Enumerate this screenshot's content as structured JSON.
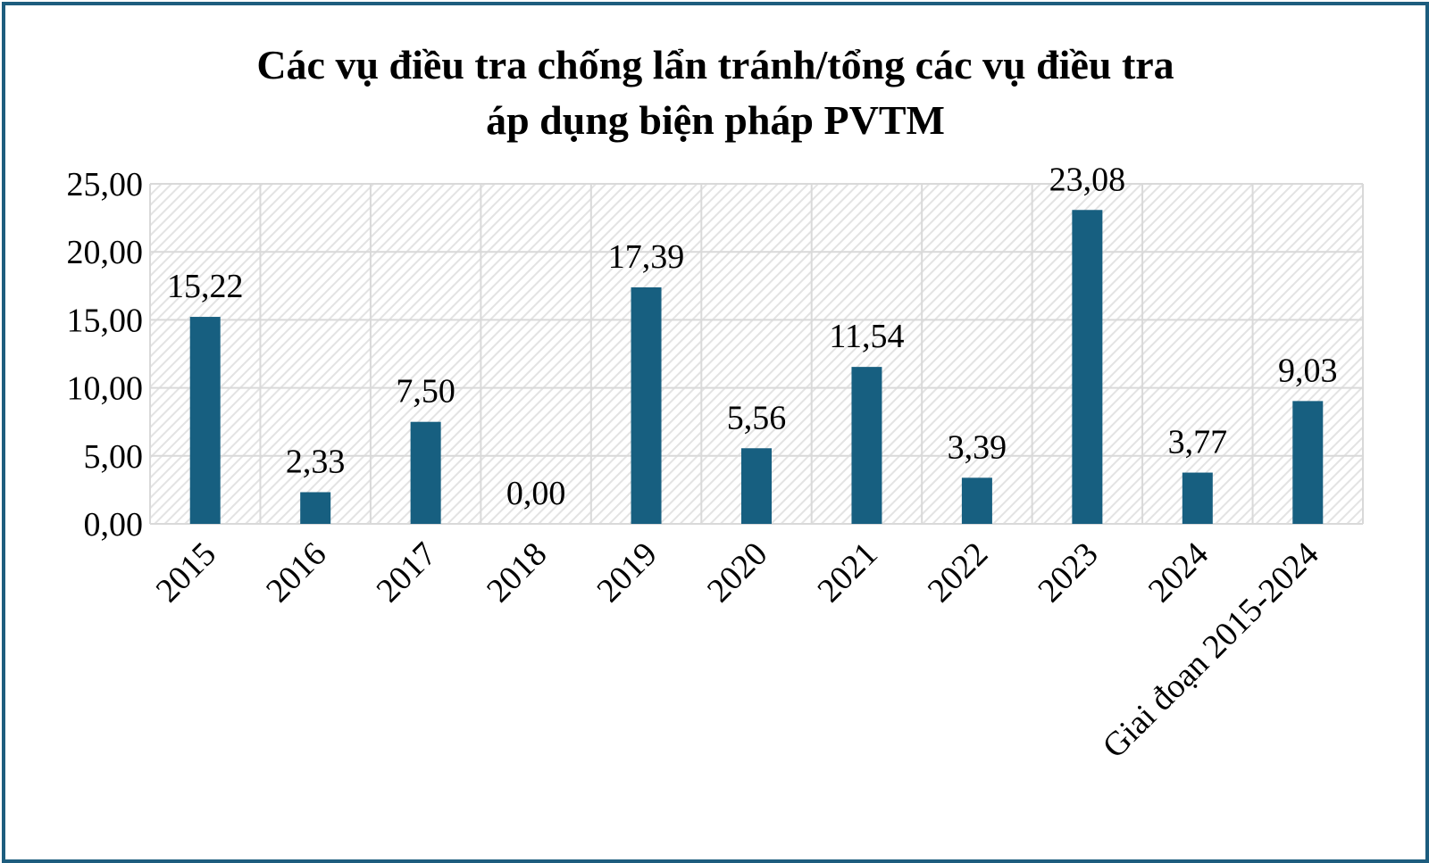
{
  "chart_data": {
    "type": "bar",
    "title_lines": [
      "Các vụ điều tra chống lẩn tránh/tổng các vụ điều tra",
      "áp dụng biện pháp PVTM"
    ],
    "categories": [
      "2015",
      "2016",
      "2017",
      "2018",
      "2019",
      "2020",
      "2021",
      "2022",
      "2023",
      "2024",
      "Giai đoạn 2015-2024"
    ],
    "values": [
      15.22,
      2.33,
      7.5,
      0.0,
      17.39,
      5.56,
      11.54,
      3.39,
      23.08,
      3.77,
      9.03
    ],
    "data_labels": [
      "15,22",
      "2,33",
      "7,50",
      "0,00",
      "17,39",
      "5,56",
      "11,54",
      "3,39",
      "23,08",
      "3,77",
      "9,03"
    ],
    "y_ticks": [
      0,
      5,
      10,
      15,
      20,
      25
    ],
    "y_tick_labels": [
      "0,00",
      "5,00",
      "10,00",
      "15,00",
      "20,00",
      "25,00"
    ],
    "ylim": [
      0,
      25
    ],
    "xlabel": "",
    "ylabel": "",
    "grid": true,
    "legend": "none",
    "colors": {
      "bar": "#175f80",
      "frame": "#1d5d7e",
      "grid": "#d9d9d9",
      "hatch": "#e3e3e3"
    }
  }
}
